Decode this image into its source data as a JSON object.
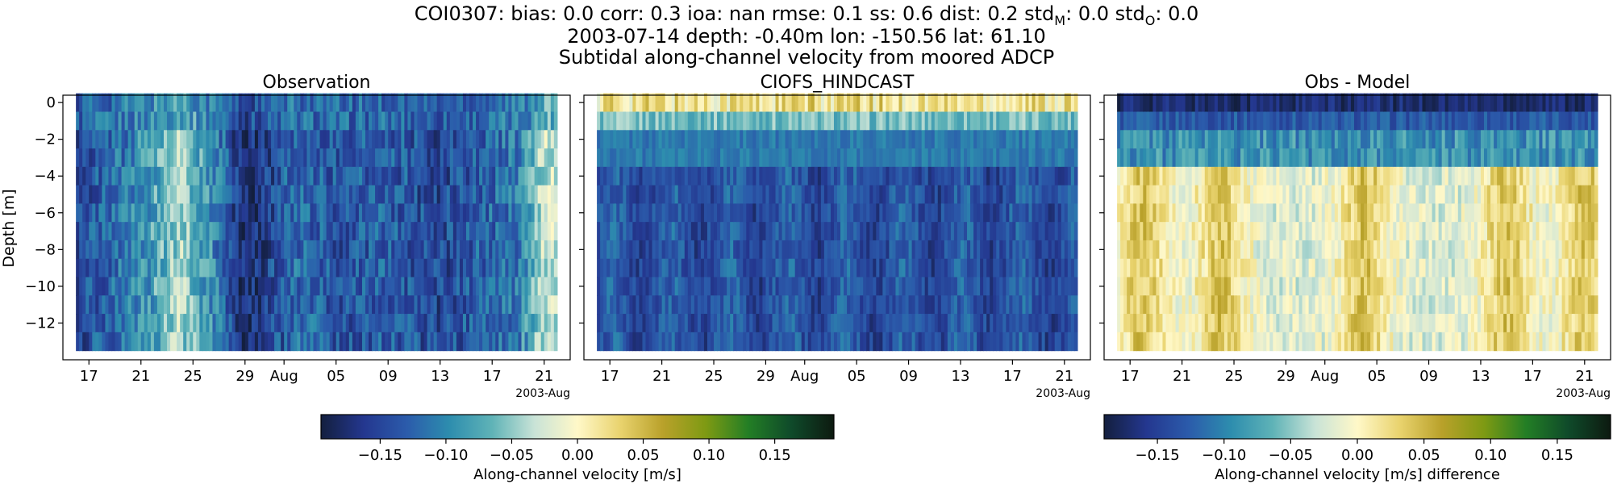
{
  "header": {
    "line1": "COI0307: bias: 0.0  corr: 0.3  ioa: nan  rmse: 0.1  ss: 0.6  dist: 0.2  std",
    "line1_sub_m": "M",
    "line1_mid": ": 0.0  std",
    "line1_sub_o": "O",
    "line1_end": ": 0.0",
    "line2": "2003-07-14 depth: -0.40m lon: -150.56 lat: 61.10",
    "line3": "Subtidal along-channel velocity from moored ADCP"
  },
  "axes_common": {
    "ylabel": "Depth [m]",
    "yticks": [
      "0",
      "−2",
      "−4",
      "−6",
      "−8",
      "−10",
      "−12"
    ],
    "ytick_values": [
      0,
      -2,
      -4,
      -6,
      -8,
      -10,
      -12
    ],
    "xticks": [
      "17",
      "21",
      "25",
      "29",
      "Aug",
      "05",
      "09",
      "13",
      "17",
      "21"
    ],
    "xtick_dates": [
      "2003-07-17",
      "2003-07-21",
      "2003-07-25",
      "2003-07-29",
      "2003-08-01",
      "2003-08-05",
      "2003-08-09",
      "2003-08-13",
      "2003-08-17",
      "2003-08-21"
    ],
    "offset_label": "2003-Aug"
  },
  "colors": {
    "cmap_delta": [
      "#131f3e",
      "#24378f",
      "#2b5bab",
      "#2d8dae",
      "#5fb3b7",
      "#c9e3d7",
      "#fff8c8",
      "#e9d36e",
      "#b9a12a",
      "#7e9a13",
      "#237e25",
      "#0f4a2a",
      "#0d1a10"
    ]
  },
  "colorbars": [
    {
      "label": "Along-channel velocity [m/s]",
      "range": [
        -0.195,
        0.195
      ],
      "ticks": [
        "−0.15",
        "−0.10",
        "−0.05",
        "0.00",
        "0.05",
        "0.10",
        "0.15"
      ],
      "tick_values": [
        -0.15,
        -0.1,
        -0.05,
        0.0,
        0.05,
        0.1,
        0.15
      ]
    },
    {
      "label": "Along-channel velocity [m/s] difference",
      "range": [
        -0.19,
        0.19
      ],
      "ticks": [
        "−0.15",
        "−0.10",
        "−0.05",
        "0.00",
        "0.05",
        "0.10",
        "0.15"
      ],
      "tick_values": [
        -0.15,
        -0.1,
        -0.05,
        0.0,
        0.05,
        0.1,
        0.15
      ]
    }
  ],
  "chart_data": [
    {
      "type": "heatmap",
      "title": "Observation",
      "x_range": [
        "2003-07-15",
        "2003-08-23"
      ],
      "y_range": [
        -14,
        0.4
      ],
      "data_x_range": [
        "2003-07-16",
        "2003-08-22"
      ],
      "depth_bins": [
        0,
        -1,
        -2,
        -3,
        -4,
        -5,
        -6,
        -7,
        -8,
        -9,
        -10,
        -11,
        -12,
        -13
      ],
      "time_series_dates": [
        "2003-07-16",
        "2003-07-19",
        "2003-07-22",
        "2003-07-24",
        "2003-07-27",
        "2003-07-29",
        "2003-08-02",
        "2003-08-05",
        "2003-08-09",
        "2003-08-13",
        "2003-08-16",
        "2003-08-19",
        "2003-08-21"
      ],
      "profile_m_s": [
        -0.15,
        -0.12,
        -0.08,
        -0.04,
        -0.11,
        -0.18,
        -0.12,
        -0.14,
        -0.13,
        -0.15,
        -0.13,
        -0.11,
        -0.03
      ]
    },
    {
      "type": "heatmap",
      "title": "CIOFS_HINDCAST",
      "x_range": [
        "2003-07-15",
        "2003-08-23"
      ],
      "y_range": [
        -14,
        0.4
      ],
      "data_x_range": [
        "2003-07-16",
        "2003-08-22"
      ],
      "depth_bins": [
        0,
        -1,
        -2,
        -3,
        -4,
        -5,
        -6,
        -7,
        -8,
        -9,
        -10,
        -11,
        -12,
        -13
      ],
      "surface_m_s": 0.02,
      "interior_m_s": -0.14
    },
    {
      "type": "heatmap",
      "title": "Obs - Model",
      "x_range": [
        "2003-07-15",
        "2003-08-23"
      ],
      "y_range": [
        -14,
        0.4
      ],
      "data_x_range": [
        "2003-07-16",
        "2003-08-22"
      ],
      "depth_bins": [
        0,
        -1,
        -2,
        -3,
        -4,
        -5,
        -6,
        -7,
        -8,
        -9,
        -10,
        -11,
        -12,
        -13
      ],
      "surface_diff_m_s": -0.17,
      "positive_band_dates": [
        "2003-07-18",
        "2003-07-24",
        "2003-08-04",
        "2003-08-15",
        "2003-08-21"
      ]
    }
  ]
}
